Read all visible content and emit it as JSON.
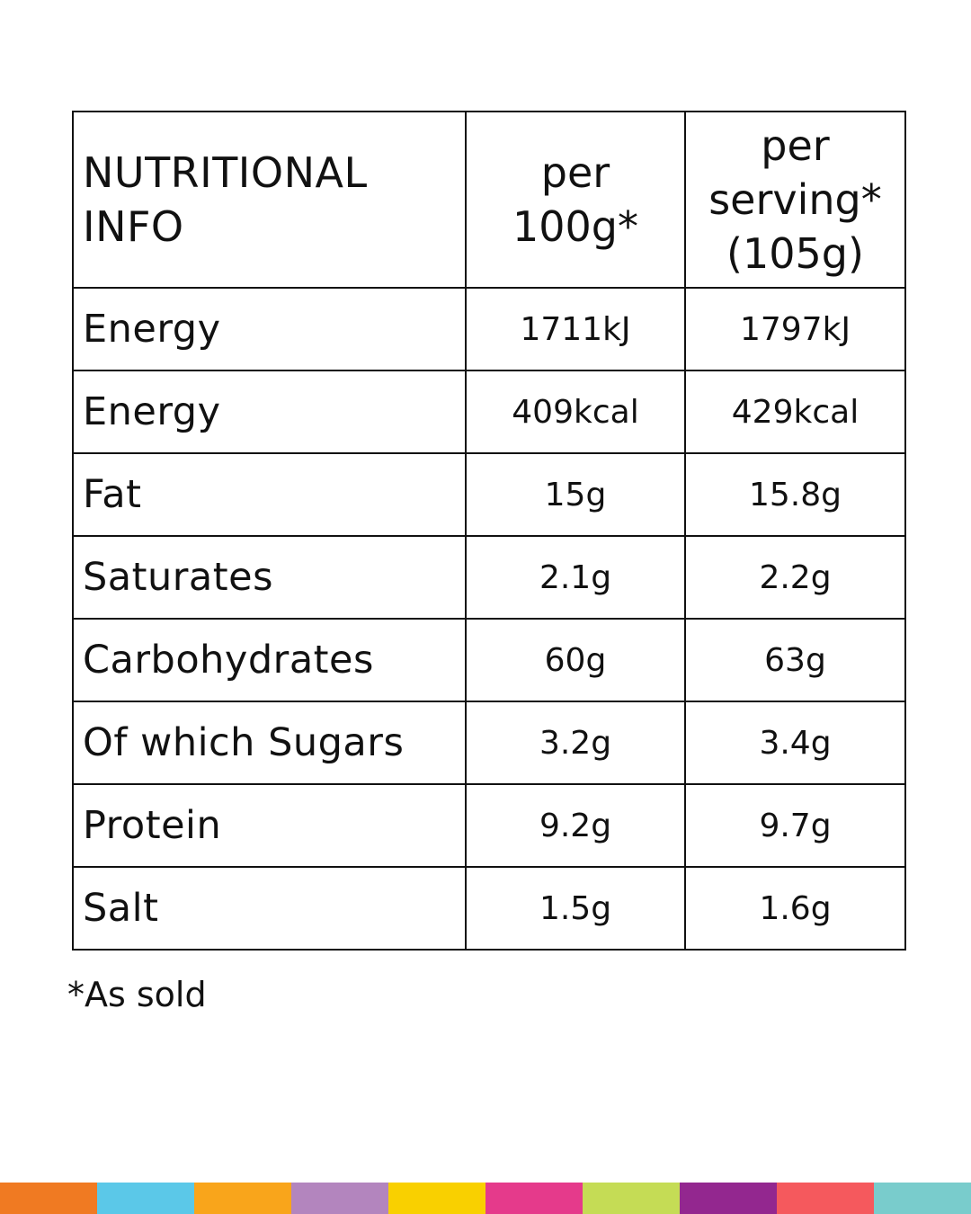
{
  "table": {
    "header": [
      [
        "NUTRITIONAL",
        "INFO"
      ],
      [
        "per",
        "100g*"
      ],
      [
        "per",
        "serving*",
        "(105g)"
      ]
    ],
    "rows": [
      [
        "Energy",
        "1711kJ",
        "1797kJ"
      ],
      [
        "Energy",
        "409kcal",
        "429kcal"
      ],
      [
        "Fat",
        "15g",
        "15.8g"
      ],
      [
        "Saturates",
        "2.1g",
        "2.2g"
      ],
      [
        "Carbohydrates",
        "60g",
        "63g"
      ],
      [
        "Of which Sugars",
        "3.2g",
        "3.4g"
      ],
      [
        "Protein",
        "9.2g",
        "9.7g"
      ],
      [
        "Salt",
        "1.5g",
        "1.6g"
      ]
    ]
  },
  "footnote": "*As sold"
}
